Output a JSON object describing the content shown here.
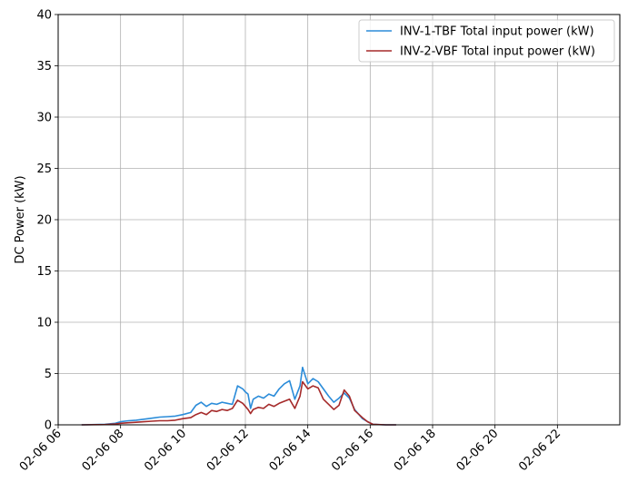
{
  "chart_data": {
    "type": "line",
    "title": "",
    "xlabel": "",
    "ylabel": "DC Power (kW)",
    "xlim": [
      "2024-02-06 06:00",
      "2024-02-06 24:00"
    ],
    "ylim": [
      0,
      40
    ],
    "grid": true,
    "legend_position": "top-right",
    "x_ticks": [
      {
        "t": "2024-02-06 06:00",
        "label": "02-06 06"
      },
      {
        "t": "2024-02-06 08:00",
        "label": "02-06 08"
      },
      {
        "t": "2024-02-06 10:00",
        "label": "02-06 10"
      },
      {
        "t": "2024-02-06 12:00",
        "label": "02-06 12"
      },
      {
        "t": "2024-02-06 14:00",
        "label": "02-06 14"
      },
      {
        "t": "2024-02-06 16:00",
        "label": "02-06 16"
      },
      {
        "t": "2024-02-06 18:00",
        "label": "02-06 18"
      },
      {
        "t": "2024-02-06 20:00",
        "label": "02-06 20"
      },
      {
        "t": "2024-02-06 22:00",
        "label": "02-06 22"
      }
    ],
    "y_ticks": [
      0,
      5,
      10,
      15,
      20,
      25,
      30,
      35,
      40
    ],
    "series": [
      {
        "name": "INV-1-TBF Total input power (kW)",
        "color": "#2b8cd9",
        "x": [
          "2024-02-06 06:45",
          "2024-02-06 07:30",
          "2024-02-06 07:50",
          "2024-02-06 08:00",
          "2024-02-06 08:15",
          "2024-02-06 08:30",
          "2024-02-06 08:45",
          "2024-02-06 09:00",
          "2024-02-06 09:15",
          "2024-02-06 09:30",
          "2024-02-06 09:45",
          "2024-02-06 10:00",
          "2024-02-06 10:15",
          "2024-02-06 10:25",
          "2024-02-06 10:35",
          "2024-02-06 10:45",
          "2024-02-06 10:55",
          "2024-02-06 11:05",
          "2024-02-06 11:15",
          "2024-02-06 11:25",
          "2024-02-06 11:35",
          "2024-02-06 11:45",
          "2024-02-06 11:55",
          "2024-02-06 12:00",
          "2024-02-06 12:05",
          "2024-02-06 12:10",
          "2024-02-06 12:15",
          "2024-02-06 12:25",
          "2024-02-06 12:35",
          "2024-02-06 12:45",
          "2024-02-06 12:55",
          "2024-02-06 13:05",
          "2024-02-06 13:15",
          "2024-02-06 13:25",
          "2024-02-06 13:35",
          "2024-02-06 13:45",
          "2024-02-06 13:50",
          "2024-02-06 14:00",
          "2024-02-06 14:10",
          "2024-02-06 14:20",
          "2024-02-06 14:30",
          "2024-02-06 14:40",
          "2024-02-06 14:50",
          "2024-02-06 15:00",
          "2024-02-06 15:10",
          "2024-02-06 15:20",
          "2024-02-06 15:30",
          "2024-02-06 15:45",
          "2024-02-06 15:55",
          "2024-02-06 16:05",
          "2024-02-06 16:30",
          "2024-02-06 16:50"
        ],
        "y": [
          0.0,
          0.05,
          0.15,
          0.3,
          0.4,
          0.45,
          0.55,
          0.65,
          0.75,
          0.8,
          0.85,
          1.0,
          1.2,
          1.9,
          2.2,
          1.8,
          2.1,
          2.0,
          2.2,
          2.1,
          2.0,
          3.8,
          3.5,
          3.2,
          3.0,
          1.6,
          2.5,
          2.8,
          2.6,
          3.0,
          2.8,
          3.5,
          4.0,
          4.3,
          2.5,
          3.8,
          5.6,
          4.0,
          4.5,
          4.2,
          3.5,
          2.8,
          2.2,
          2.6,
          3.1,
          2.6,
          1.5,
          0.6,
          0.3,
          0.05,
          0.0,
          0.0
        ]
      },
      {
        "name": "INV-2-VBF Total input power (kW)",
        "color": "#a52a2a",
        "x": [
          "2024-02-06 06:45",
          "2024-02-06 07:30",
          "2024-02-06 07:50",
          "2024-02-06 08:00",
          "2024-02-06 08:15",
          "2024-02-06 08:30",
          "2024-02-06 08:45",
          "2024-02-06 09:00",
          "2024-02-06 09:15",
          "2024-02-06 09:30",
          "2024-02-06 09:45",
          "2024-02-06 10:00",
          "2024-02-06 10:15",
          "2024-02-06 10:25",
          "2024-02-06 10:35",
          "2024-02-06 10:45",
          "2024-02-06 10:55",
          "2024-02-06 11:05",
          "2024-02-06 11:15",
          "2024-02-06 11:25",
          "2024-02-06 11:35",
          "2024-02-06 11:45",
          "2024-02-06 11:55",
          "2024-02-06 12:00",
          "2024-02-06 12:05",
          "2024-02-06 12:10",
          "2024-02-06 12:15",
          "2024-02-06 12:25",
          "2024-02-06 12:35",
          "2024-02-06 12:45",
          "2024-02-06 12:55",
          "2024-02-06 13:05",
          "2024-02-06 13:15",
          "2024-02-06 13:25",
          "2024-02-06 13:35",
          "2024-02-06 13:45",
          "2024-02-06 13:50",
          "2024-02-06 14:00",
          "2024-02-06 14:10",
          "2024-02-06 14:20",
          "2024-02-06 14:30",
          "2024-02-06 14:40",
          "2024-02-06 14:50",
          "2024-02-06 15:00",
          "2024-02-06 15:10",
          "2024-02-06 15:20",
          "2024-02-06 15:30",
          "2024-02-06 15:45",
          "2024-02-06 15:55",
          "2024-02-06 16:05",
          "2024-02-06 16:30",
          "2024-02-06 16:50"
        ],
        "y": [
          0.0,
          0.03,
          0.08,
          0.15,
          0.2,
          0.25,
          0.3,
          0.35,
          0.4,
          0.4,
          0.45,
          0.6,
          0.7,
          1.0,
          1.2,
          1.0,
          1.4,
          1.3,
          1.5,
          1.4,
          1.6,
          2.4,
          2.1,
          1.8,
          1.5,
          1.1,
          1.5,
          1.7,
          1.6,
          2.0,
          1.8,
          2.1,
          2.3,
          2.5,
          1.6,
          2.8,
          4.2,
          3.5,
          3.8,
          3.6,
          2.5,
          2.0,
          1.5,
          1.9,
          3.4,
          2.8,
          1.4,
          0.7,
          0.3,
          0.05,
          0.0,
          0.0
        ]
      }
    ]
  }
}
